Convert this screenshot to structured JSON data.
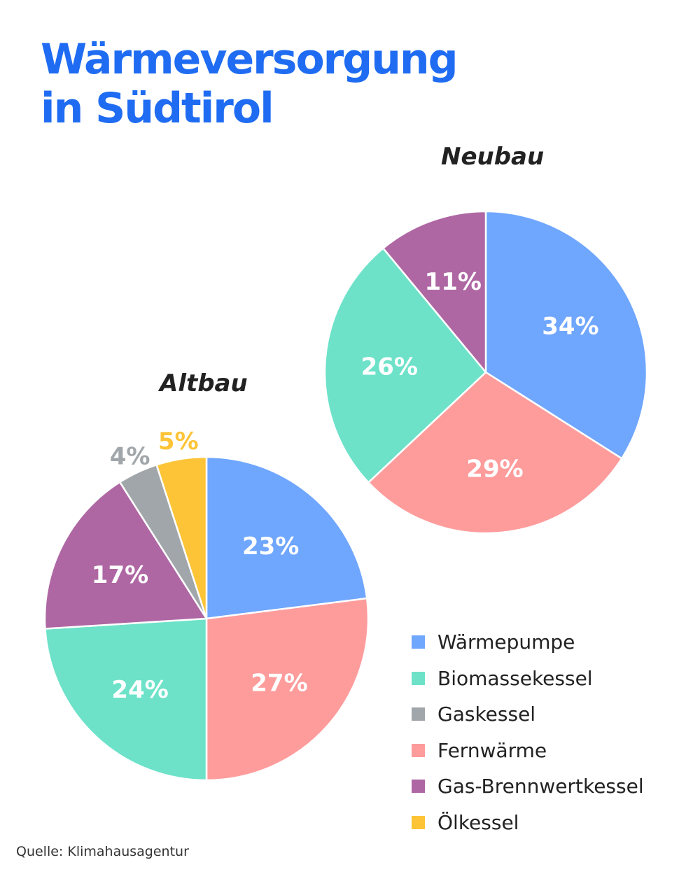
{
  "title_lines": [
    "Wärmeversorgung",
    "in Südtirol"
  ],
  "source": "Quelle: Klimahausagentur",
  "legend": [
    {
      "label": "Wärmepumpe",
      "color": "#6fa6fe"
    },
    {
      "label": "Biomassekessel",
      "color": "#6de2c9"
    },
    {
      "label": "Gaskessel",
      "color": "#a1a6aa"
    },
    {
      "label": "Fernwärme",
      "color": "#fe9c9c"
    },
    {
      "label": "Gas-Brennwertkessel",
      "color": "#ae67a3"
    },
    {
      "label": "Ölkessel",
      "color": "#fdc437"
    }
  ],
  "chart_data": [
    {
      "type": "pie",
      "title": "Neubau",
      "slices": [
        {
          "category": "Wärmepumpe",
          "value": 34,
          "label": "34%",
          "color": "#6fa6fe",
          "label_style": "inside"
        },
        {
          "category": "Fernwärme",
          "value": 29,
          "label": "29%",
          "color": "#fe9c9c",
          "label_style": "inside"
        },
        {
          "category": "Biomassekessel",
          "value": 26,
          "label": "26%",
          "color": "#6de2c9",
          "label_style": "inside"
        },
        {
          "category": "Gas-Brennwertkessel",
          "value": 11,
          "label": "11%",
          "color": "#ae67a3",
          "label_style": "inside"
        }
      ]
    },
    {
      "type": "pie",
      "title": "Altbau",
      "slices": [
        {
          "category": "Wärmepumpe",
          "value": 23,
          "label": "23%",
          "color": "#6fa6fe",
          "label_style": "inside"
        },
        {
          "category": "Fernwärme",
          "value": 27,
          "label": "27%",
          "color": "#fe9c9c",
          "label_style": "inside"
        },
        {
          "category": "Biomassekessel",
          "value": 24,
          "label": "24%",
          "color": "#6de2c9",
          "label_style": "inside"
        },
        {
          "category": "Gas-Brennwertkessel",
          "value": 17,
          "label": "17%",
          "color": "#ae67a3",
          "label_style": "inside"
        },
        {
          "category": "Gaskessel",
          "value": 4,
          "label": "4%",
          "color": "#a1a6aa",
          "label_style": "outside"
        },
        {
          "category": "Ölkessel",
          "value": 5,
          "label": "5%",
          "color": "#fdc437",
          "label_style": "outside"
        }
      ]
    }
  ]
}
